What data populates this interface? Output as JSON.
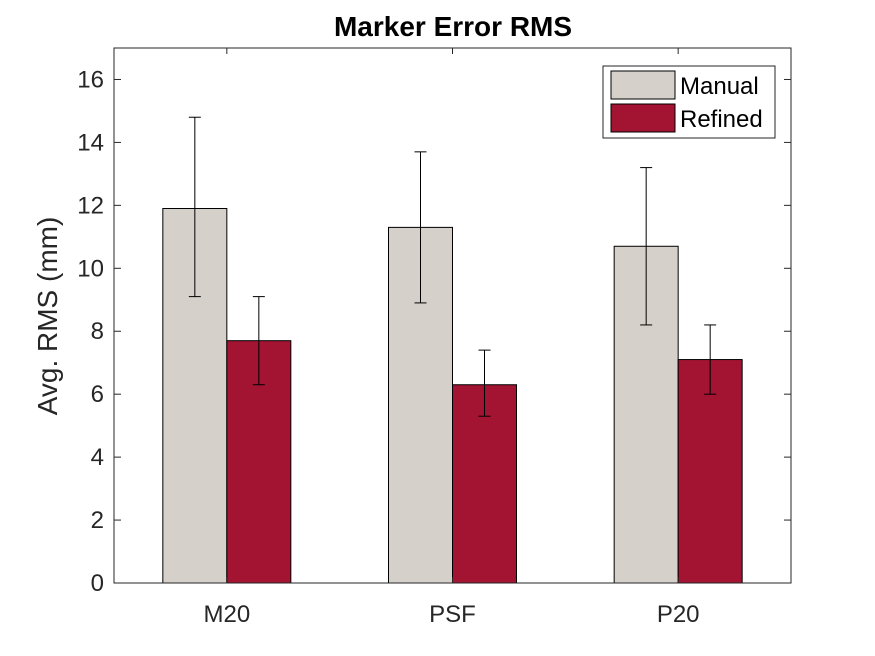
{
  "chart_data": {
    "type": "bar",
    "title": "Marker Error RMS",
    "xlabel": "",
    "ylabel": "Avg. RMS (mm)",
    "ylim": [
      0,
      17
    ],
    "yticks": [
      0,
      2,
      4,
      6,
      8,
      10,
      12,
      14,
      16
    ],
    "categories": [
      "M20",
      "PSF",
      "P20"
    ],
    "series": [
      {
        "name": "Manual",
        "color": "#d5d1ca",
        "values": [
          11.9,
          11.3,
          10.7
        ],
        "err_low": [
          9.1,
          8.9,
          8.2
        ],
        "err_high": [
          14.8,
          13.7,
          13.2
        ]
      },
      {
        "name": "Refined",
        "color": "#a31433",
        "values": [
          7.7,
          6.3,
          7.1
        ],
        "err_low": [
          6.3,
          5.3,
          6.0
        ],
        "err_high": [
          9.1,
          7.4,
          8.2
        ]
      }
    ],
    "legend": {
      "position": "top-right"
    },
    "grid": false
  }
}
